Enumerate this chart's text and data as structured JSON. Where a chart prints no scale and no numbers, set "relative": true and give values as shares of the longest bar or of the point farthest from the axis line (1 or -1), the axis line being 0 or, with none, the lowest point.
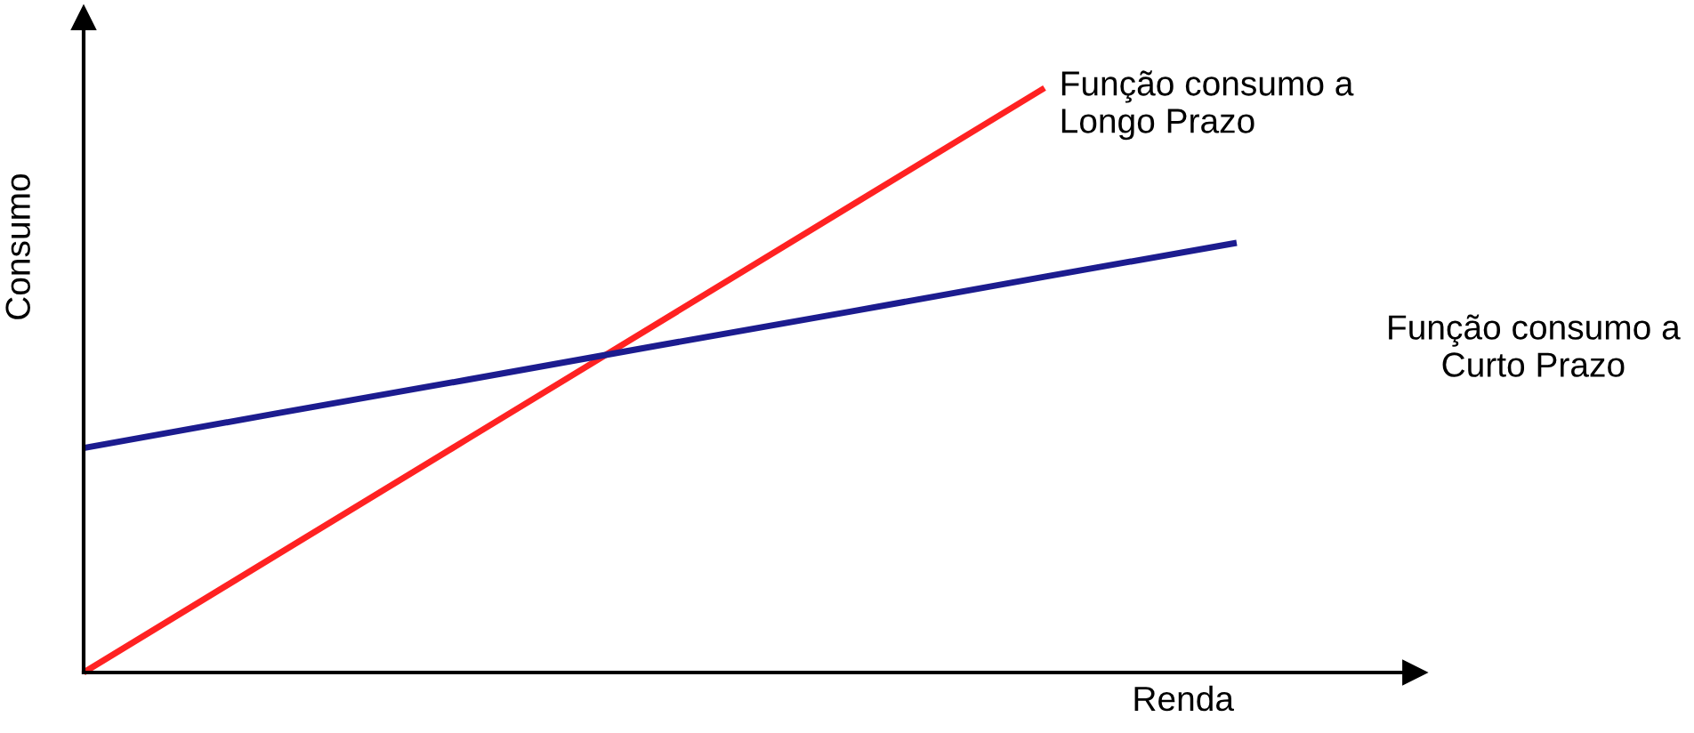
{
  "chart_data": {
    "type": "line",
    "relative": true,
    "xlabel": "Renda",
    "ylabel": "Consumo",
    "tick_labels": false,
    "legend": false,
    "marker": "none",
    "categories": [
      null,
      null,
      null,
      null,
      null,
      null,
      null
    ],
    "series": [
      {
        "name": "Função consumo a\nLongo Prazo",
        "color": "#ff2222",
        "values": [
          0,
          0.2,
          0.4,
          0.6,
          0.8,
          1,
          null
        ]
      },
      {
        "name": "Função consumo a\nCurto Prazo",
        "color": "#1c1c8f",
        "values": [
          0.384,
          0.443,
          0.501,
          0.56,
          0.618,
          0.677,
          0.735
        ]
      }
    ]
  }
}
